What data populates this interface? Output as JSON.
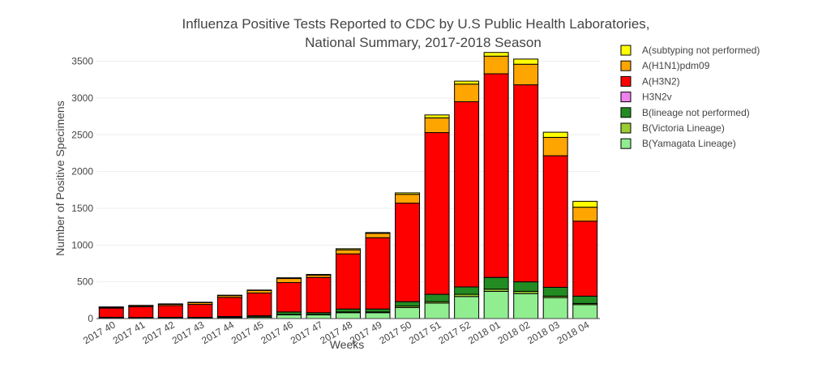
{
  "chart_data": {
    "type": "bar",
    "stacked": true,
    "title_lines": [
      "Influenza Positive Tests Reported to CDC by U.S Public Health Laboratories,",
      "National Summary, 2017-2018 Season"
    ],
    "xlabel": "Weeks",
    "ylabel": "Number of Positive Specimens",
    "ylim": [
      0,
      3650
    ],
    "yticks": [
      0,
      500,
      1000,
      1500,
      2000,
      2500,
      3000,
      3500
    ],
    "grid": true,
    "legend_position": "right",
    "categories": [
      "2017 40",
      "2017 41",
      "2017 42",
      "2017 43",
      "2017 44",
      "2017 45",
      "2017 46",
      "2017 47",
      "2017 48",
      "2017 49",
      "2017 50",
      "2017 51",
      "2017 52",
      "2018 01",
      "2018 02",
      "2018 03",
      "2018 04"
    ],
    "series": [
      {
        "name": "B(Yamagata Lineage)",
        "color": "#90ee90",
        "values": [
          10,
          8,
          10,
          10,
          15,
          20,
          50,
          50,
          80,
          80,
          150,
          210,
          300,
          370,
          340,
          285,
          190
        ]
      },
      {
        "name": "B(Victoria Lineage)",
        "color": "#9acd32",
        "values": [
          2,
          2,
          2,
          2,
          3,
          3,
          5,
          5,
          10,
          10,
          20,
          20,
          30,
          30,
          30,
          20,
          15
        ]
      },
      {
        "name": "B(lineage not performed)",
        "color": "#228b22",
        "values": [
          5,
          5,
          5,
          5,
          10,
          15,
          35,
          25,
          40,
          40,
          60,
          100,
          100,
          160,
          130,
          120,
          100
        ]
      },
      {
        "name": "H3N2v",
        "color": "#ee82ee",
        "values": [
          0,
          0,
          0,
          0,
          0,
          0,
          0,
          0,
          0,
          0,
          0,
          0,
          0,
          0,
          0,
          0,
          0
        ]
      },
      {
        "name": "A(H3N2)",
        "color": "#ff0000",
        "values": [
          125,
          145,
          160,
          175,
          260,
          310,
          400,
          480,
          750,
          970,
          1340,
          2200,
          2520,
          2770,
          2680,
          1790,
          1020
        ]
      },
      {
        "name": "A(H1N1)pdm09",
        "color": "#ffa500",
        "values": [
          12,
          15,
          18,
          25,
          25,
          35,
          55,
          30,
          55,
          60,
          120,
          200,
          240,
          240,
          280,
          250,
          190
        ]
      },
      {
        "name": "A(subtyping not performed)",
        "color": "#ffff00",
        "values": [
          5,
          5,
          5,
          5,
          5,
          5,
          10,
          10,
          15,
          10,
          20,
          40,
          40,
          50,
          70,
          70,
          80
        ]
      }
    ],
    "legend_order": [
      "A(subtyping not performed)",
      "A(H1N1)pdm09",
      "A(H3N2)",
      "H3N2v",
      "B(lineage not performed)",
      "B(Victoria Lineage)",
      "B(Yamagata Lineage)"
    ]
  }
}
